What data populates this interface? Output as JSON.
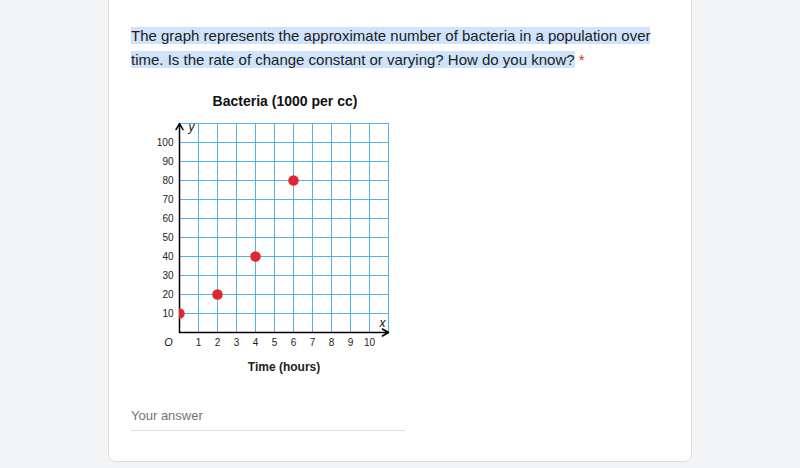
{
  "page": {
    "question": "The graph represents the approximate number of bacteria in a population over time. Is the rate of change constant or varying? How do you know?",
    "required_mark": "*",
    "answer_placeholder": "Your answer"
  },
  "chart_data": {
    "type": "scatter",
    "title": "Bacteria (1000 per cc)",
    "x_label": "Time (hours)",
    "origin_label": "O",
    "x_letter": "x",
    "y_letter": "y",
    "x": [
      0,
      2,
      4,
      6
    ],
    "values": [
      10,
      20,
      40,
      80
    ],
    "color": "#e0262f",
    "marker": "circle",
    "xlim": [
      0,
      11
    ],
    "xticks": [
      1,
      2,
      3,
      4,
      5,
      6,
      7,
      8,
      9,
      10
    ],
    "ylim": [
      0,
      110
    ],
    "yticks": [
      10,
      20,
      30,
      40,
      50,
      60,
      70,
      80,
      90,
      100
    ],
    "grid": true
  }
}
